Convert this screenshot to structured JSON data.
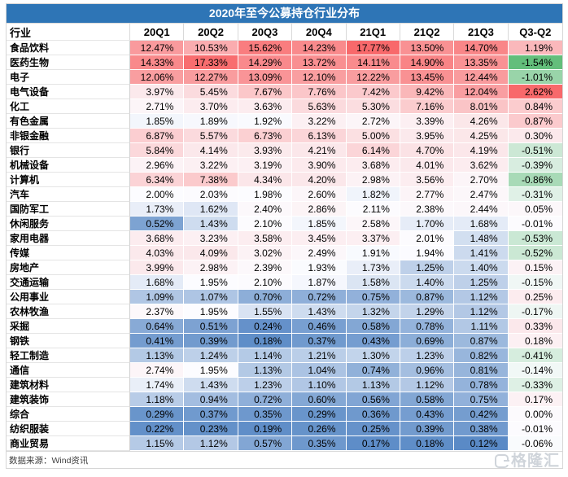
{
  "title": "2020年至今公募持仓行业分布",
  "header": {
    "industry_column": "行业"
  },
  "footer": {
    "source": "数据来源：Wind资讯"
  },
  "watermark": {
    "text": "格隆汇"
  },
  "colors": {
    "title_bg": "#2E75B6",
    "title_text": "#FFFFFF",
    "scale_min": "#5A8AC6",
    "scale_mid": "#FCFCFF",
    "scale_max": "#F8696B",
    "delta_min": "#63BE7B",
    "delta_mid": "#FCFCFF",
    "delta_max": "#F8696B"
  },
  "chart_data": {
    "type": "heatmap",
    "title": "2020年至今公募持仓行业分布",
    "row_header": "行业",
    "columns": [
      "20Q1",
      "20Q2",
      "20Q3",
      "20Q4",
      "21Q1",
      "21Q2",
      "21Q3"
    ],
    "delta_column": "Q3-Q2",
    "value_unit": "%",
    "color_scale_note": "blue(low)-white(mid)-red(high) for quarterly values; green(low)-white(mid)-red(high) for Q3-Q2 delta",
    "rows": [
      {
        "industry": "食品饮料",
        "values": [
          12.47,
          10.53,
          15.62,
          14.23,
          17.77,
          13.5,
          14.7
        ],
        "delta": 1.19
      },
      {
        "industry": "医药生物",
        "values": [
          14.33,
          17.33,
          14.29,
          13.72,
          14.11,
          14.9,
          13.35
        ],
        "delta": -1.54
      },
      {
        "industry": "电子",
        "values": [
          12.06,
          12.27,
          13.09,
          12.1,
          12.22,
          13.45,
          12.44
        ],
        "delta": -1.01
      },
      {
        "industry": "电气设备",
        "values": [
          3.97,
          5.45,
          7.67,
          7.76,
          7.42,
          9.42,
          12.04
        ],
        "delta": 2.62
      },
      {
        "industry": "化工",
        "values": [
          2.71,
          3.7,
          3.63,
          5.63,
          5.3,
          7.16,
          8.01
        ],
        "delta": 0.84
      },
      {
        "industry": "有色金属",
        "values": [
          1.85,
          1.89,
          1.92,
          3.22,
          2.72,
          3.39,
          4.26
        ],
        "delta": 0.87
      },
      {
        "industry": "非银金融",
        "values": [
          6.87,
          5.57,
          6.73,
          6.13,
          5.0,
          3.95,
          4.25
        ],
        "delta": 0.3
      },
      {
        "industry": "银行",
        "values": [
          5.84,
          4.14,
          3.93,
          4.21,
          6.14,
          4.7,
          4.19
        ],
        "delta": -0.51
      },
      {
        "industry": "机械设备",
        "values": [
          2.96,
          3.22,
          3.19,
          3.9,
          3.68,
          4.01,
          3.62
        ],
        "delta": -0.39
      },
      {
        "industry": "计算机",
        "values": [
          6.34,
          7.38,
          4.34,
          4.2,
          2.98,
          3.56,
          2.7
        ],
        "delta": -0.86
      },
      {
        "industry": "汽车",
        "values": [
          2.0,
          2.03,
          1.98,
          2.6,
          1.82,
          2.77,
          2.47
        ],
        "delta": -0.31
      },
      {
        "industry": "国防军工",
        "values": [
          1.73,
          1.62,
          2.4,
          2.86,
          2.11,
          2.38,
          2.44
        ],
        "delta": 0.05
      },
      {
        "industry": "休闲服务",
        "values": [
          0.52,
          1.43,
          2.1,
          1.85,
          2.58,
          1.7,
          1.68
        ],
        "delta": -0.01
      },
      {
        "industry": "家用电器",
        "values": [
          3.68,
          3.23,
          3.58,
          3.45,
          3.37,
          2.01,
          1.48
        ],
        "delta": -0.53
      },
      {
        "industry": "传媒",
        "values": [
          4.03,
          4.09,
          3.02,
          2.49,
          1.91,
          1.94,
          1.41
        ],
        "delta": -0.52
      },
      {
        "industry": "房地产",
        "values": [
          3.99,
          2.98,
          2.39,
          1.93,
          1.73,
          1.25,
          1.4
        ],
        "delta": 0.15
      },
      {
        "industry": "交通运输",
        "values": [
          1.68,
          1.95,
          2.1,
          1.87,
          1.58,
          1.4,
          1.25
        ],
        "delta": -0.15
      },
      {
        "industry": "公用事业",
        "values": [
          1.09,
          1.07,
          0.7,
          0.72,
          0.75,
          0.87,
          1.12
        ],
        "delta": 0.25
      },
      {
        "industry": "农林牧渔",
        "values": [
          2.37,
          1.95,
          1.55,
          1.43,
          1.32,
          1.29,
          1.12
        ],
        "delta": -0.17
      },
      {
        "industry": "采掘",
        "values": [
          0.64,
          0.51,
          0.24,
          0.46,
          0.58,
          0.78,
          1.11
        ],
        "delta": 0.33
      },
      {
        "industry": "钢铁",
        "values": [
          0.41,
          0.39,
          0.18,
          0.37,
          0.43,
          0.69,
          0.87
        ],
        "delta": 0.18
      },
      {
        "industry": "轻工制造",
        "values": [
          1.13,
          1.24,
          1.14,
          1.21,
          1.3,
          1.23,
          0.82
        ],
        "delta": -0.41
      },
      {
        "industry": "通信",
        "values": [
          2.74,
          1.95,
          1.13,
          1.04,
          0.74,
          0.96,
          0.81
        ],
        "delta": -0.14
      },
      {
        "industry": "建筑材料",
        "values": [
          1.74,
          1.43,
          1.23,
          1.1,
          1.13,
          1.12,
          0.78
        ],
        "delta": -0.33
      },
      {
        "industry": "建筑装饰",
        "values": [
          1.18,
          0.94,
          0.72,
          0.6,
          0.56,
          0.58,
          0.75
        ],
        "delta": 0.17
      },
      {
        "industry": "综合",
        "values": [
          0.29,
          0.37,
          0.35,
          0.29,
          0.36,
          0.43,
          0.42
        ],
        "delta": 0.0
      },
      {
        "industry": "纺织服装",
        "values": [
          0.22,
          0.23,
          0.19,
          0.26,
          0.25,
          0.39,
          0.38
        ],
        "delta": -0.01
      },
      {
        "industry": "商业贸易",
        "values": [
          1.15,
          1.12,
          0.57,
          0.35,
          0.17,
          0.18,
          0.12
        ],
        "delta": -0.06
      }
    ]
  }
}
